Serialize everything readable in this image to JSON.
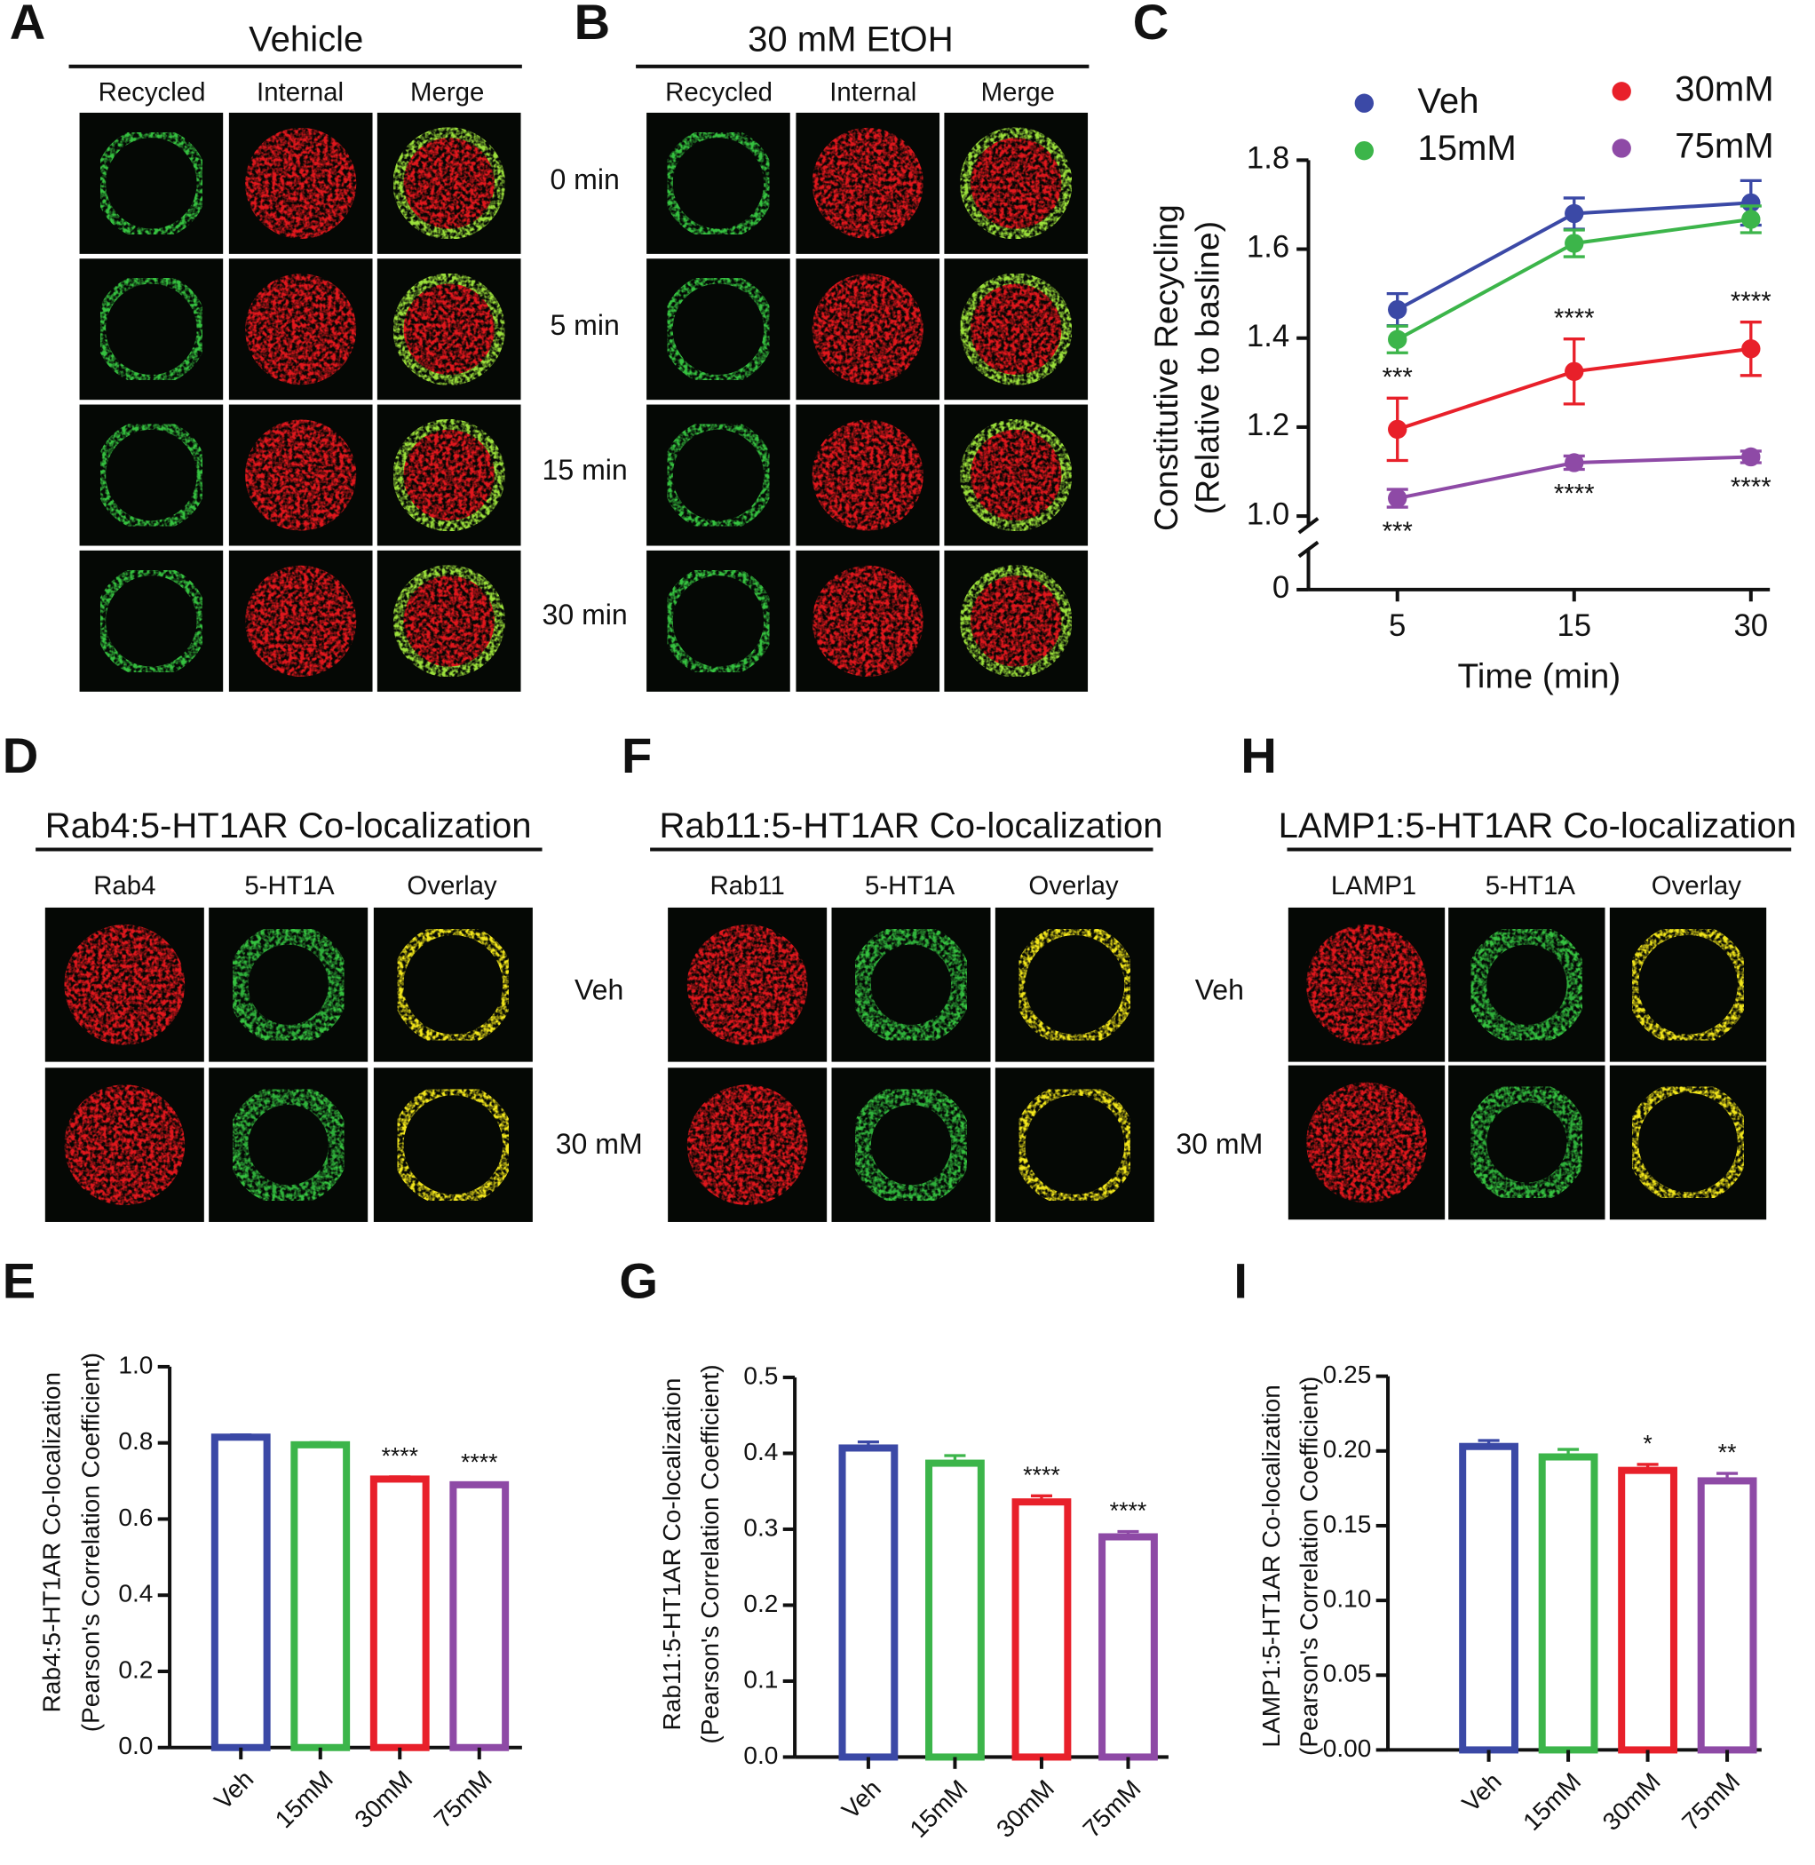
{
  "image_panels": [
    {
      "panel": "A",
      "title": "Vehicle",
      "columns": [
        "Recycled",
        "Internal",
        "Merge"
      ],
      "rows": [
        "0 min",
        "5 min",
        "15 min",
        "30 min"
      ]
    },
    {
      "panel": "B",
      "title": "30 mM EtOH",
      "columns": [
        "Recycled",
        "Internal",
        "Merge"
      ]
    },
    {
      "panel": "D",
      "title": "Rab4:5-HT1AR Co-localization",
      "columns": [
        "Rab4",
        "5-HT1A",
        "Overlay"
      ],
      "rows": [
        "Veh",
        "30 mM"
      ]
    },
    {
      "panel": "F",
      "title": "Rab11:5-HT1AR Co-localization",
      "columns": [
        "Rab11",
        "5-HT1A",
        "Overlay"
      ],
      "rows": [
        "Veh",
        "30 mM"
      ]
    },
    {
      "panel": "H",
      "title": "LAMP1:5-HT1AR Co-localization",
      "columns": [
        "LAMP1",
        "5-HT1A",
        "Overlay"
      ]
    }
  ],
  "chart_data": [
    {
      "type": "line",
      "panel": "C",
      "xlabel": "Time (min)",
      "ylabel": [
        "Constitutive Recycling",
        "(Relative to basline)"
      ],
      "categories": [
        "5",
        "15",
        "30"
      ],
      "ylim": [
        1.0,
        1.8
      ],
      "yticks": [
        {
          "value": 1.0,
          "label": "1.0"
        },
        1.2,
        1.4,
        1.6,
        1.8
      ],
      "yticks_below_break": [
        0
      ],
      "series": [
        {
          "name": "Veh",
          "color": "#3b49a6",
          "values": [
            1.464,
            1.68,
            1.704
          ],
          "errors": [
            0.036,
            0.035,
            0.05
          ]
        },
        {
          "name": "15mM",
          "color": "#3cb54a",
          "values": [
            1.397,
            1.613,
            1.667
          ],
          "errors": [
            0.03,
            0.03,
            0.03
          ]
        },
        {
          "name": "30mM",
          "color": "#e8202a",
          "values": [
            1.195,
            1.325,
            1.376
          ],
          "errors": [
            0.07,
            0.073,
            0.06
          ],
          "significance": [
            "***",
            "****",
            "****"
          ]
        },
        {
          "name": "75mM",
          "color": "#8e4aa6",
          "values": [
            1.04,
            1.12,
            1.133
          ],
          "errors": [
            0.02,
            0.015,
            0.013
          ],
          "significance": [
            "***",
            "****",
            "****"
          ]
        }
      ]
    },
    {
      "type": "bar",
      "panel": "E",
      "ylabel": [
        "Rab4:5-HT1AR Co-localization",
        "(Pearson's Correlation Coefficient)"
      ],
      "categories": [
        "Veh",
        "15mM",
        "30mM",
        "75mM"
      ],
      "colors": [
        "#3b49a6",
        "#3cb54a",
        "#e8202a",
        "#8e4aa6"
      ],
      "values": [
        0.815,
        0.795,
        0.705,
        0.69
      ],
      "errors": [
        0.006,
        0.006,
        0.006,
        0.005
      ],
      "significance": [
        null,
        null,
        "****",
        "****"
      ],
      "ylim": [
        0,
        1.0
      ],
      "yticks": [
        {
          "value": 0,
          "label": "0.0"
        },
        0.2,
        0.4,
        0.6,
        0.8,
        {
          "value": 1.0,
          "label": "1.0"
        }
      ]
    },
    {
      "type": "bar",
      "panel": "G",
      "ylabel": [
        "Rab11:5-HT1AR Co-localization",
        "(Pearson's Correlation Coefficient)"
      ],
      "categories": [
        "Veh",
        "15mM",
        "30mM",
        "75mM"
      ],
      "colors": [
        "#3b49a6",
        "#3cb54a",
        "#e8202a",
        "#8e4aa6"
      ],
      "values": [
        0.407,
        0.387,
        0.336,
        0.29
      ],
      "errors": [
        0.008,
        0.01,
        0.008,
        0.007
      ],
      "significance": [
        null,
        null,
        "****",
        "****"
      ],
      "ylim": [
        0,
        0.5
      ],
      "yticks": [
        {
          "value": 0,
          "label": "0.0"
        },
        0.1,
        0.2,
        0.3,
        0.4,
        0.5
      ]
    },
    {
      "type": "bar",
      "panel": "I",
      "ylabel": [
        "LAMP1:5-HT1AR Co-localization",
        "(Pearson's Correlation Coefficient)"
      ],
      "categories": [
        "Veh",
        "15mM",
        "30mM",
        "75mM"
      ],
      "colors": [
        "#3b49a6",
        "#3cb54a",
        "#e8202a",
        "#8e4aa6"
      ],
      "values": [
        0.203,
        0.196,
        0.187,
        0.18
      ],
      "errors": [
        0.004,
        0.005,
        0.004,
        0.005
      ],
      "significance": [
        null,
        null,
        "*",
        "**"
      ],
      "ylim": [
        0,
        0.25
      ],
      "yticks": [
        {
          "value": 0,
          "label": "0.00"
        },
        0.05,
        {
          "value": 0.1,
          "label": "0.10"
        },
        0.15,
        {
          "value": 0.2,
          "label": "0.20"
        },
        0.25
      ]
    }
  ]
}
